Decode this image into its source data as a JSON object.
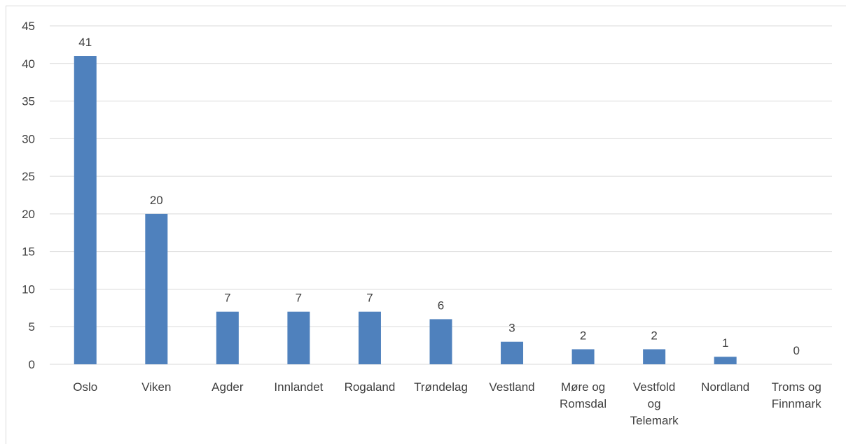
{
  "chart_data": {
    "type": "bar",
    "categories": [
      "Oslo",
      "Viken",
      "Agder",
      "Innlandet",
      "Rogaland",
      "Trøndelag",
      "Vestland",
      "Møre og Romsdal",
      "Vestfold og Telemark",
      "Nordland",
      "Troms og Finnmark"
    ],
    "category_lines": [
      [
        "Oslo"
      ],
      [
        "Viken"
      ],
      [
        "Agder"
      ],
      [
        "Innlandet"
      ],
      [
        "Rogaland"
      ],
      [
        "Trøndelag"
      ],
      [
        "Vestland"
      ],
      [
        "Møre og",
        "Romsdal"
      ],
      [
        "Vestfold",
        "og",
        "Telemark"
      ],
      [
        "Nordland"
      ],
      [
        "Troms og",
        "Finnmark"
      ]
    ],
    "values": [
      41,
      20,
      7,
      7,
      7,
      6,
      3,
      2,
      2,
      1,
      0
    ],
    "ylim": [
      0,
      45
    ],
    "yticks": [
      0,
      5,
      10,
      15,
      20,
      25,
      30,
      35,
      40,
      45
    ],
    "grid": true,
    "bar_color": "#4f81bd",
    "title": "",
    "xlabel": "",
    "ylabel": ""
  }
}
